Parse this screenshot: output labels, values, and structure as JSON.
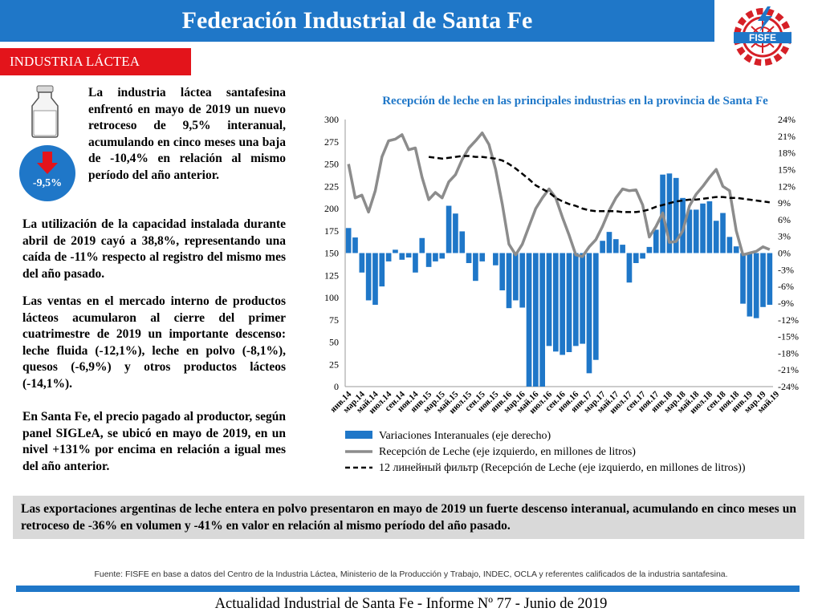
{
  "header": {
    "title": "Federación Industrial de Santa Fe"
  },
  "logo": {
    "text": "FISFE",
    "icon": "gear-with-bolt-logo"
  },
  "section": {
    "label": "INDUSTRIA LÁCTEA"
  },
  "badge": {
    "value": "-9,5%",
    "icon": "down-arrow-icon"
  },
  "text": {
    "p1": "La industria láctea santafesina enfrentó en mayo de 2019 un nuevo retroceso de 9,5% interanual, acumulando en cinco meses una baja de -10,4% en relación al mismo período del año anterior.",
    "p2": "La utilización de la capacidad instalada durante abril de 2019 cayó a 38,8%, representando una caída de -11% respecto al registro del mismo mes del año pasado.",
    "p3": "Las ventas en el mercado interno de productos lácteos acumularon al cierre del primer cuatrimestre de 2019 un importante descenso: leche fluida (-12,1%), leche en polvo (-8,1%), quesos (-6,9%) y otros productos lácteos (-14,1%).",
    "p4": "En Santa Fe, el precio pagado al productor, según panel SIGLeA, se ubicó en mayo de 2019, en un nivel +131% por encima en relación a igual mes del año anterior."
  },
  "summary": "Las exportaciones argentinas de leche entera en polvo presentaron en mayo de 2019 un fuerte descenso interanual, acumulando en cinco meses un retroceso de -36% en volumen y -41% en valor en relación al mismo período del año pasado.",
  "source": "Fuente: FISFE en base a datos del Centro de la Industria Láctea, Ministerio de la Producción y Trabajo, INDEC, OCLA y referentes calificados de la industria santafesina.",
  "footer": "Actualidad Industrial de Santa Fe - Informe Nº 77 - Junio de 2019",
  "colors": {
    "brand_blue": "#1f77c8",
    "accent_red": "#e3141b",
    "line_gray": "#8c8c8c",
    "bar_blue": "#1f77c8"
  },
  "chart_data": {
    "type": "bar",
    "title": "Recepción de leche en las principales industrias en la provincia de Santa Fe",
    "yleft": {
      "ticks": [
        "300",
        "275",
        "250",
        "225",
        "200",
        "175",
        "150",
        "125",
        "100",
        "75",
        "50",
        "25",
        "0"
      ],
      "range": [
        0,
        300
      ]
    },
    "yright": {
      "ticks": [
        "24%",
        "21%",
        "18%",
        "15%",
        "12%",
        "9%",
        "6%",
        "3%",
        "0%",
        "-3%",
        "-6%",
        "-9%",
        "-12%",
        "-15%",
        "-18%",
        "-21%",
        "-24%"
      ],
      "range": [
        -24,
        24
      ]
    },
    "x_ticks": [
      "янв.14",
      "мар.14",
      "май.14",
      "июл.14",
      "сен.14",
      "ноя.14",
      "янв.15",
      "мар.15",
      "май.15",
      "июл.15",
      "сен.15",
      "ноя.15",
      "янв.16",
      "мар.16",
      "май.16",
      "июл.16",
      "сен.16",
      "ноя.16",
      "янв.17",
      "мар.17",
      "май.17",
      "июл.17",
      "сен.17",
      "ноя.17",
      "янв.18",
      "мар.18",
      "май.18",
      "июл.18",
      "сен.18",
      "ноя.18",
      "янв.19",
      "мар.19",
      "май.19"
    ],
    "grid": false,
    "legend_position": "bottom",
    "series": [
      {
        "name": "Variaciones Interanuales (eje derecho)",
        "type": "bar",
        "axis": "right",
        "values": [
          4.5,
          2.8,
          -3.5,
          -8.5,
          -9.3,
          -6,
          -1.5,
          0.6,
          -1.2,
          -0.8,
          -3.5,
          2.7,
          -2.5,
          -1.5,
          -1,
          8.5,
          7.1,
          3.9,
          -1.8,
          -5,
          -1.5,
          0,
          -2.2,
          -6.7,
          -9.9,
          -8.5,
          -9.8,
          -24,
          -24,
          -24,
          -16.7,
          -17.7,
          -18.3,
          -17.8,
          -16.7,
          -16.3,
          -21.6,
          -19.2,
          2.2,
          3.8,
          2.5,
          1.5,
          -5.3,
          -1.8,
          -1,
          1.1,
          4.2,
          14.1,
          14.3,
          13.5,
          9.9,
          7.8,
          7.8,
          8.9,
          9.3,
          5.8,
          7.2,
          2.9,
          1.2,
          -9.1,
          -11.4,
          -11.7,
          -9.7,
          -9.3
        ]
      },
      {
        "name": "Recepción de Leche (eje izquierdo, en millones de litros)",
        "type": "line",
        "axis": "left",
        "values": [
          250,
          212,
          215,
          196,
          220,
          258,
          276,
          278,
          283,
          266,
          268,
          235,
          210,
          218,
          212,
          230,
          238,
          255,
          268,
          276,
          285,
          272,
          244,
          205,
          160,
          148,
          160,
          180,
          200,
          212,
          222,
          212,
          190,
          170,
          148,
          146,
          157,
          165,
          180,
          198,
          212,
          222,
          220,
          221,
          204,
          168,
          180,
          195,
          162,
          163,
          175,
          203,
          216,
          225,
          235,
          244,
          225,
          220,
          175,
          148,
          150,
          152,
          157,
          154
        ]
      },
      {
        "name": "12 линейный фильтр (Recepción de Leche (eje izquierdo, en millones de litros))",
        "type": "dashed",
        "axis": "left",
        "values": [
          null,
          null,
          null,
          null,
          null,
          null,
          null,
          null,
          null,
          null,
          null,
          null,
          258,
          257,
          256,
          257,
          258,
          259,
          259,
          258,
          258,
          257,
          256,
          254,
          250,
          245,
          239,
          233,
          226,
          222,
          218,
          212,
          208,
          205,
          203,
          200,
          198,
          197,
          197,
          197,
          197,
          196,
          196,
          196,
          197,
          199,
          202,
          204,
          206,
          208,
          209,
          210,
          210,
          211,
          212,
          213,
          213,
          212,
          212,
          211,
          210,
          209,
          208,
          207
        ]
      }
    ]
  }
}
